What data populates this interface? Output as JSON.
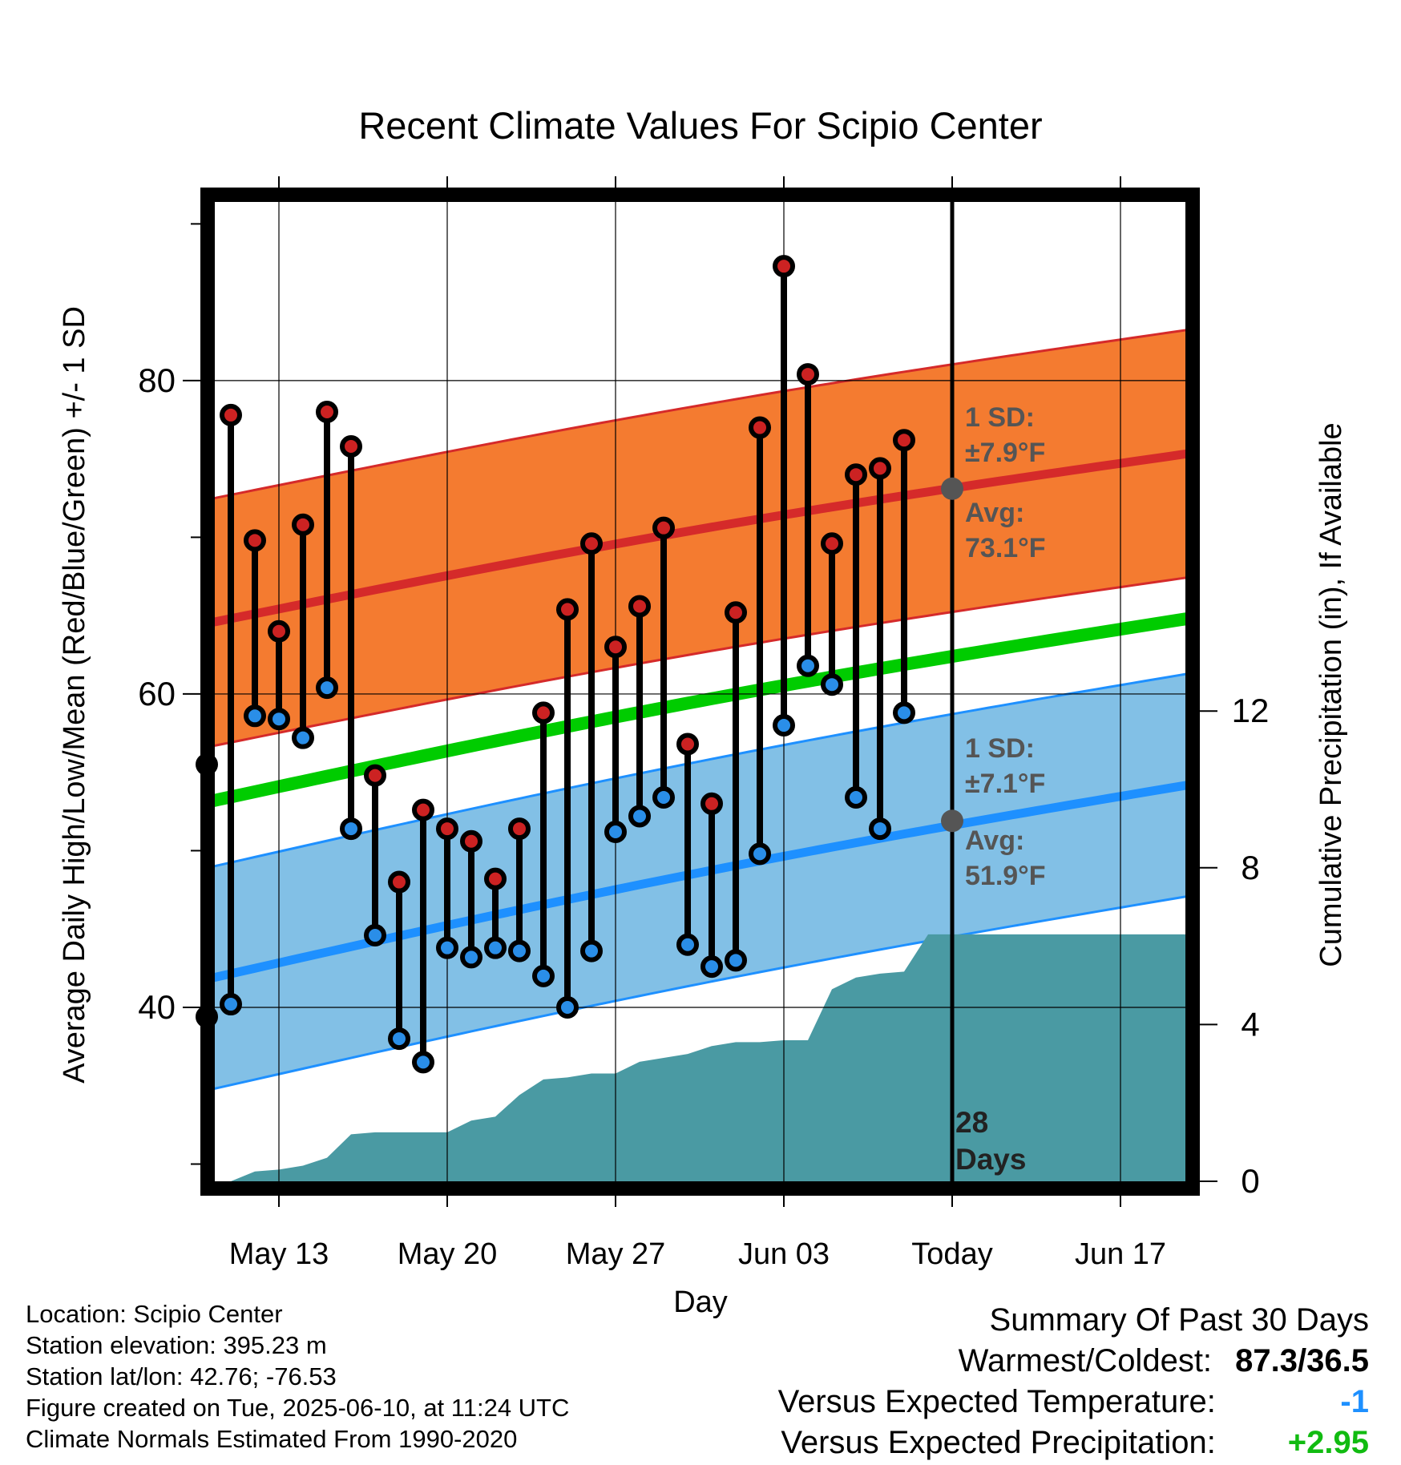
{
  "chart_data": {
    "type": "line",
    "title": "Recent Climate Values For Scipio Center",
    "xlabel": "Day",
    "ylabel": "Average Daily High/Low/Mean (Red/Blue/Green) +/- 1 SD",
    "y2label": "Cumulative Precipitation (in), If Available",
    "x_tick_labels": [
      "May 13",
      "May 20",
      "May 27",
      "Jun 03",
      "Today",
      "Jun 17"
    ],
    "y_ticks": [
      "40",
      "60",
      "80"
    ],
    "y2_ticks": [
      "0",
      "4",
      "8",
      "12"
    ],
    "ylim": [
      28.9,
      91.4
    ],
    "y2lim": [
      0,
      20
    ],
    "days": [
      "May 10",
      "May 11",
      "May 12",
      "May 13",
      "May 14",
      "May 15",
      "May 16",
      "May 17",
      "May 18",
      "May 19",
      "May 20",
      "May 21",
      "May 22",
      "May 23",
      "May 24",
      "May 25",
      "May 26",
      "May 27",
      "May 28",
      "May 29",
      "May 30",
      "May 31",
      "Jun 01",
      "Jun 02",
      "Jun 03",
      "Jun 04",
      "Jun 05",
      "Jun 06",
      "Jun 07",
      "Jun 08",
      "Jun 09"
    ],
    "daily_high": [
      55.5,
      77.8,
      69.8,
      64.0,
      70.8,
      78.0,
      75.8,
      54.8,
      48.0,
      52.6,
      51.4,
      50.6,
      48.2,
      51.4,
      58.8,
      65.4,
      69.6,
      63.0,
      65.6,
      70.6,
      56.8,
      53.0,
      65.2,
      77.0,
      87.3,
      80.4,
      69.6,
      74.0,
      74.4,
      76.2,
      null
    ],
    "daily_low": [
      39.4,
      40.2,
      58.6,
      58.4,
      57.2,
      60.4,
      51.4,
      44.6,
      38.0,
      36.5,
      43.8,
      43.2,
      43.8,
      43.6,
      42.0,
      40.0,
      43.6,
      51.2,
      52.2,
      53.4,
      44.0,
      42.6,
      43.0,
      49.8,
      58.0,
      61.8,
      60.6,
      53.4,
      51.4,
      58.8,
      null
    ],
    "series": [
      {
        "name": "High",
        "x": [
          "May 10",
          "Jun 21"
        ],
        "values": [
          64.5,
          75.6
        ],
        "sd": 7.9
      },
      {
        "name": "Low",
        "x": [
          "May 10",
          "Jun 21"
        ],
        "values": [
          41.8,
          54.5
        ],
        "sd": 7.1
      },
      {
        "name": "Mean",
        "x": [
          "May 10",
          "Jun 21"
        ],
        "values": [
          53.1,
          65.1
        ]
      }
    ],
    "cumulative_precip": {
      "x": [
        "May 11",
        "May 12",
        "May 13",
        "May 14",
        "May 15",
        "May 16",
        "May 17",
        "May 18",
        "May 19",
        "May 20",
        "May 21",
        "May 22",
        "May 23",
        "May 24",
        "May 25",
        "May 26",
        "May 27",
        "May 28",
        "May 29",
        "May 30",
        "May 31",
        "Jun 01",
        "Jun 02",
        "Jun 03",
        "Jun 04",
        "Jun 05",
        "Jun 06",
        "Jun 07",
        "Jun 08",
        "Jun 09",
        "Jun 21"
      ],
      "values": [
        0.0,
        0.25,
        0.3,
        0.4,
        0.6,
        1.2,
        1.25,
        1.25,
        1.25,
        1.25,
        1.55,
        1.65,
        2.2,
        2.6,
        2.65,
        2.75,
        2.75,
        3.05,
        3.15,
        3.25,
        3.45,
        3.55,
        3.55,
        3.6,
        3.6,
        4.9,
        5.2,
        5.3,
        5.35,
        6.3,
        6.3
      ]
    },
    "today_label": "Today",
    "days_annotation": [
      "28",
      "Days"
    ],
    "high_annotation": {
      "sd_label": "1 SD:",
      "sd_value": "±7.9°F",
      "avg_label": "Avg:",
      "avg_value": "73.1°F",
      "avg": 73.1
    },
    "low_annotation": {
      "sd_label": "1 SD:",
      "sd_value": "±7.1°F",
      "avg_label": "Avg:",
      "avg_value": "51.9°F",
      "avg": 51.9
    },
    "colors": {
      "high_band": "#f47b30",
      "high_line": "#d52a2a",
      "low_band": "#82c0e6",
      "low_line": "#1e90ff",
      "mean_line": "#00cc00",
      "precip": "#4a9aa3",
      "high_point": "#cc2222",
      "low_point": "#2a8ee8",
      "annotation_text": "#555555"
    },
    "grid": true
  },
  "info": {
    "location": "Location: Scipio Center",
    "elevation": "Station elevation: 395.23 m",
    "latlon": "Station lat/lon: 42.76; -76.53",
    "created": "Figure created on Tue, 2025-06-10, at 11:24 UTC",
    "normals": "Climate Normals Estimated From 1990-2020"
  },
  "summary": {
    "heading": "Summary Of Past 30 Days",
    "warm_cold_label": "Warmest/Coldest:",
    "warm_cold_value": "87.3/36.5",
    "temp_label": "Versus Expected Temperature:",
    "temp_value": "-1",
    "temp_color": "#1e90ff",
    "precip_label": "Versus Expected Precipitation:",
    "precip_value": "+2.95",
    "precip_color": "#11bb11"
  }
}
